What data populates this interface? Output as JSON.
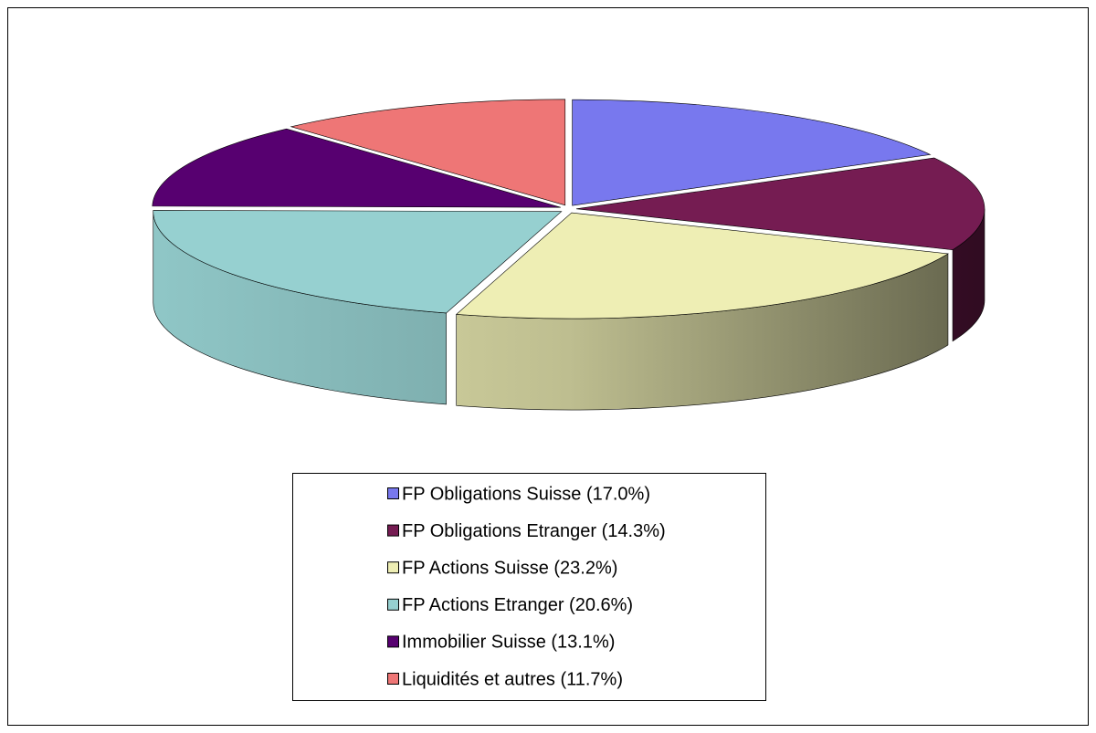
{
  "chart_data": {
    "type": "pie3d",
    "categories": [
      "FP Obligations Suisse (17.0%)",
      "FP Obligations Etranger (14.3%)",
      "FP Actions Suisse (23.2%)",
      "FP Actions Etranger (20.6%)",
      "Immobilier Suisse (13.1%)",
      "Liquidités et autres (11.7%)"
    ],
    "values": [
      17.0,
      14.3,
      23.2,
      20.6,
      13.1,
      11.7
    ],
    "colors": [
      "#7878ee",
      "#751c52",
      "#eeeeb4",
      "#96d0d0",
      "#570070",
      "#ee7676"
    ],
    "legend": "bottom"
  }
}
